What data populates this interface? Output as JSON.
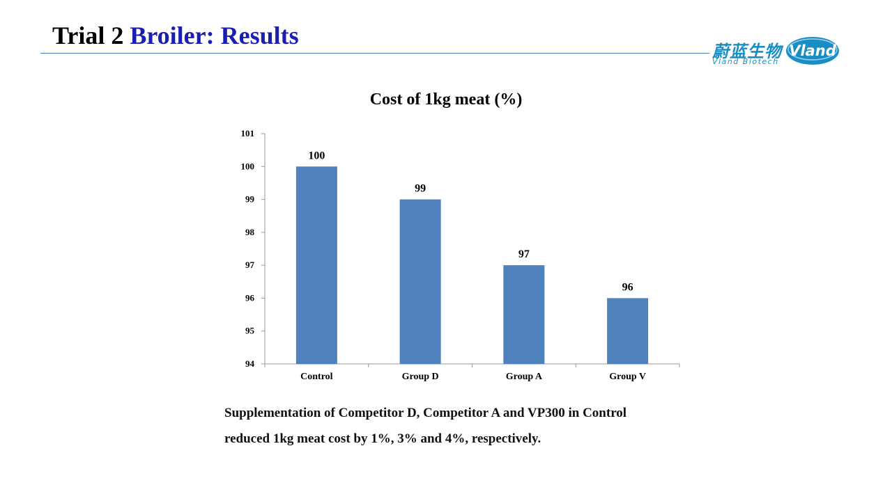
{
  "slide": {
    "title_part1": "Trial 2 ",
    "title_part2": "Broiler: Results",
    "caption_line1": "Supplementation of Competitor D, Competitor A and VP300 in Control",
    "caption_line2": "reduced 1kg meat cost by 1%, 3% and 4%, respectively."
  },
  "logo": {
    "chinese": "蔚蓝生物",
    "english": "Vland  Biotech",
    "badge": "Vland",
    "color": "#1a8ec4"
  },
  "chart_data": {
    "type": "bar",
    "title": "Cost of 1kg meat (%)",
    "categories": [
      "Control",
      "Group D",
      "Group A",
      "Group V"
    ],
    "values": [
      100,
      99,
      97,
      96
    ],
    "data_labels": [
      "100",
      "99",
      "97",
      "96"
    ],
    "ylim": [
      94,
      101
    ],
    "yticks": [
      94,
      95,
      96,
      97,
      98,
      99,
      100,
      101
    ],
    "grid": false,
    "legend": "none",
    "bar_color": "#4f81bd",
    "xlabel": "",
    "ylabel": ""
  }
}
